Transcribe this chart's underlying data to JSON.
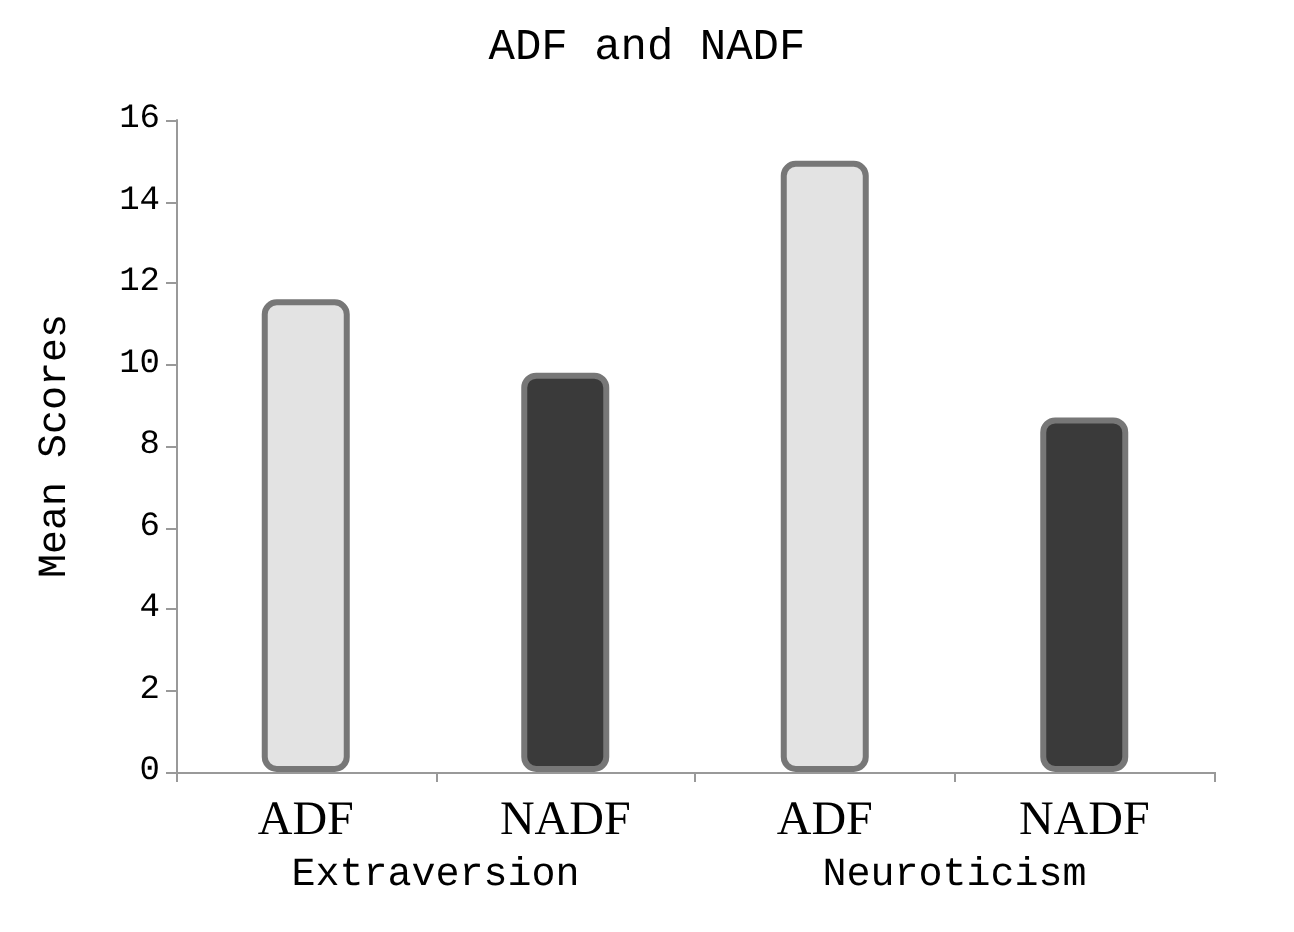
{
  "chart_data": {
    "type": "bar",
    "title": "ADF and NADF",
    "ylabel": "Mean Scores",
    "categories": [
      "ADF",
      "NADF",
      "ADF",
      "NADF"
    ],
    "values": [
      11.6,
      9.8,
      15.0,
      8.7
    ],
    "colors": [
      "#e3e3e3",
      "#3a3a3a",
      "#e3e3e3",
      "#3a3a3a"
    ],
    "ylim": [
      0,
      16
    ],
    "yticks": [
      0,
      2,
      4,
      6,
      8,
      10,
      12,
      14,
      16
    ],
    "grid": false,
    "annotations": [
      "Extraversion",
      "Neuroticism"
    ]
  }
}
